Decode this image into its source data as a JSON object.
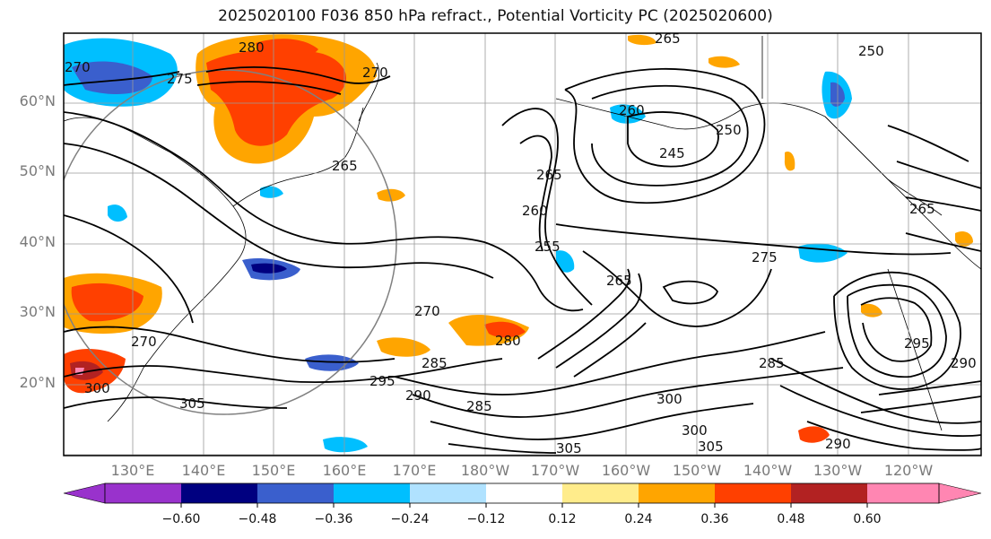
{
  "title": "2025020100 F036 850 hPa refract., Potential Vorticity PC (2025020600)",
  "map": {
    "lat_labels": [
      "60°N",
      "50°N",
      "40°N",
      "30°N",
      "20°N"
    ],
    "lon_labels": [
      "130°E",
      "140°E",
      "150°E",
      "160°E",
      "170°E",
      "180°W",
      "170°W",
      "160°W",
      "150°W",
      "140°W",
      "130°W",
      "120°W"
    ],
    "contour_labels": [
      "280",
      "275",
      "270",
      "270",
      "265",
      "265",
      "250",
      "245",
      "265",
      "260",
      "255",
      "265",
      "270",
      "275",
      "270",
      "285",
      "285",
      "295",
      "290",
      "300",
      "285",
      "280",
      "300",
      "305",
      "290",
      "300",
      "305",
      "305",
      "265",
      "295",
      "290",
      "250",
      "260"
    ]
  },
  "colorbar": {
    "ticks": [
      "−0.60",
      "−0.48",
      "−0.36",
      "−0.24",
      "−0.12",
      "0.12",
      "0.24",
      "0.36",
      "0.48",
      "0.60"
    ],
    "colors": [
      "#9932cc",
      "#000080",
      "#3a5fcd",
      "#00bfff",
      "#b0e2ff",
      "#ffffff",
      "#ffec8b",
      "#ffa500",
      "#ff4000",
      "#b22222",
      "#ff86b2"
    ]
  }
}
